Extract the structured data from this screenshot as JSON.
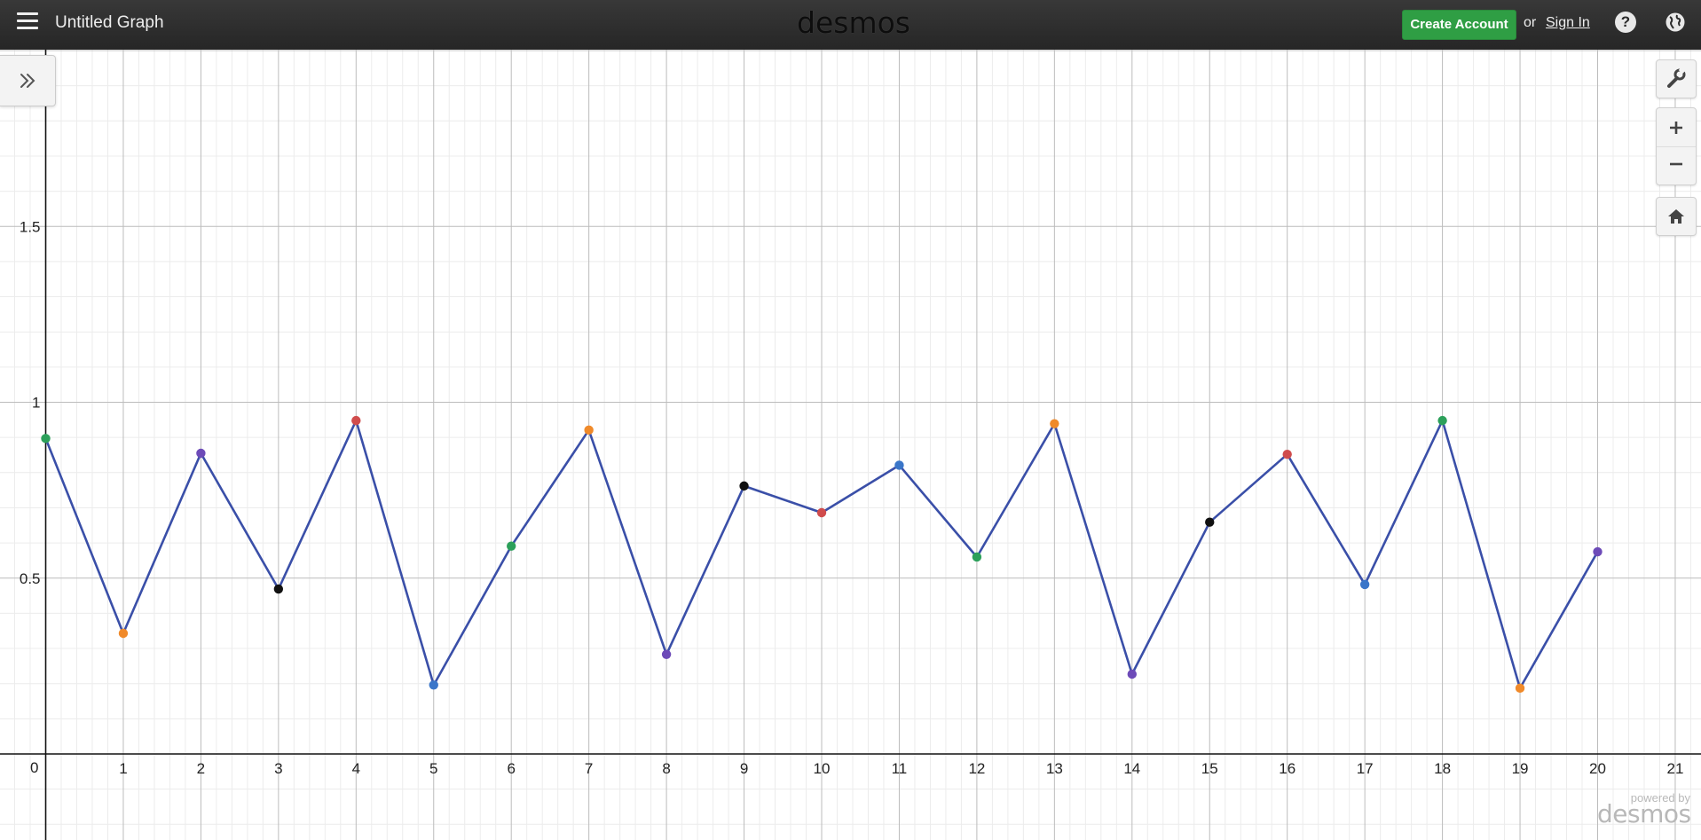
{
  "header": {
    "menu_icon": "hamburger-menu-icon",
    "title": "Untitled Graph",
    "logo": "desmos",
    "create_account_label": "Create Account",
    "or_text": "or",
    "sign_in_label": "Sign In",
    "help_label": "?",
    "help_icon": "question-icon",
    "globe_icon": "globe-icon"
  },
  "controls": {
    "expand_icon": "double-chevron-right-icon",
    "settings_icon": "wrench-icon",
    "zoom_in_icon": "plus-icon",
    "zoom_out_icon": "minus-icon",
    "home_icon": "home-icon"
  },
  "watermark": {
    "small": "powered by",
    "logo": "desmos"
  },
  "colors": {
    "line": "#3a4fa8",
    "green": "#2ca05a",
    "orange": "#f08a2a",
    "purple": "#6d4bb8",
    "black": "#111111",
    "red": "#d04c4c",
    "blue": "#3a76c9"
  },
  "chart_data": {
    "type": "line",
    "xlabel": "",
    "ylabel": "",
    "xlim": [
      -0.4,
      21.4
    ],
    "ylim": [
      -0.25,
      2.0
    ],
    "x_ticks": [
      0,
      1,
      2,
      3,
      4,
      5,
      6,
      7,
      8,
      9,
      10,
      11,
      12,
      13,
      14,
      15,
      16,
      17,
      18,
      19,
      20,
      21
    ],
    "y_ticks": [
      0.5,
      1,
      1.5
    ],
    "y_tick_labels": [
      "0.5",
      "1",
      "1.5"
    ],
    "origin_label": "0",
    "grid": true,
    "points": [
      {
        "x": 0,
        "y": 0.897,
        "color": "green"
      },
      {
        "x": 1,
        "y": 0.343,
        "color": "orange"
      },
      {
        "x": 2,
        "y": 0.855,
        "color": "purple"
      },
      {
        "x": 3,
        "y": 0.469,
        "color": "black"
      },
      {
        "x": 4,
        "y": 0.948,
        "color": "red"
      },
      {
        "x": 5,
        "y": 0.196,
        "color": "blue"
      },
      {
        "x": 6,
        "y": 0.591,
        "color": "green"
      },
      {
        "x": 7,
        "y": 0.921,
        "color": "orange"
      },
      {
        "x": 8,
        "y": 0.283,
        "color": "purple"
      },
      {
        "x": 9,
        "y": 0.762,
        "color": "black"
      },
      {
        "x": 10,
        "y": 0.686,
        "color": "red"
      },
      {
        "x": 11,
        "y": 0.821,
        "color": "blue"
      },
      {
        "x": 12,
        "y": 0.56,
        "color": "green"
      },
      {
        "x": 13,
        "y": 0.939,
        "color": "orange"
      },
      {
        "x": 14,
        "y": 0.227,
        "color": "purple"
      },
      {
        "x": 15,
        "y": 0.659,
        "color": "black"
      },
      {
        "x": 16,
        "y": 0.852,
        "color": "red"
      },
      {
        "x": 17,
        "y": 0.482,
        "color": "blue"
      },
      {
        "x": 18,
        "y": 0.948,
        "color": "green"
      },
      {
        "x": 19,
        "y": 0.187,
        "color": "orange"
      },
      {
        "x": 20,
        "y": 0.575,
        "color": "purple"
      }
    ]
  }
}
